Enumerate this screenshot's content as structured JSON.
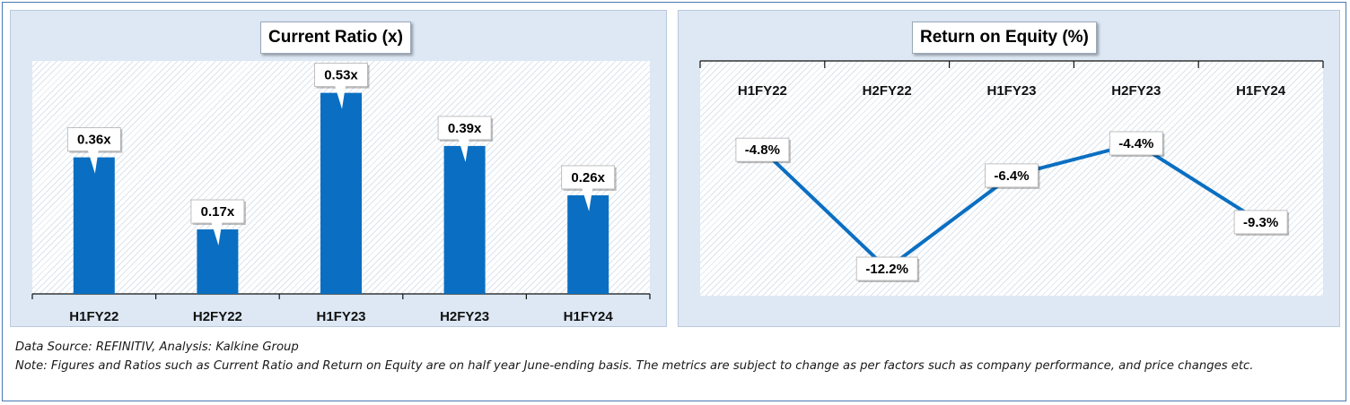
{
  "charts": [
    {
      "title": "Current Ratio (x)",
      "chart_data": {
        "type": "bar",
        "categories": [
          "H1FY22",
          "H2FY22",
          "H1FY23",
          "H2FY23",
          "H1FY24"
        ],
        "values": [
          0.36,
          0.17,
          0.53,
          0.39,
          0.26
        ],
        "data_labels": [
          "0.36x",
          "0.17x",
          "0.53x",
          "0.39x",
          "0.26x"
        ],
        "title": "Current Ratio (x)",
        "xlabel": "",
        "ylabel": "",
        "ylim": [
          0,
          0.6
        ],
        "grid": false,
        "bar_color": "#0a6fc2"
      }
    },
    {
      "title": "Return on Equity (%)",
      "chart_data": {
        "type": "line",
        "categories": [
          "H1FY22",
          "H2FY22",
          "H1FY23",
          "H2FY23",
          "H1FY24"
        ],
        "values": [
          -4.8,
          -12.2,
          -6.4,
          -4.4,
          -9.3
        ],
        "data_labels": [
          "-4.8%",
          "-12.2%",
          "-6.4%",
          "-4.4%",
          "-9.3%"
        ],
        "title": "Return on Equity (%)",
        "xlabel": "",
        "ylabel": "",
        "ylim": [
          -14,
          0
        ],
        "x_axis_position": "top",
        "grid": false,
        "line_color": "#0a6fc2"
      }
    }
  ],
  "notes": {
    "source": "Data Source: REFINITIV, Analysis: Kalkine Group",
    "note": "Note: Figures and Ratios such as Current Ratio and Return on Equity are on half year June-ending basis. The metrics are subject to change as per factors such as company performance, and price changes etc."
  }
}
